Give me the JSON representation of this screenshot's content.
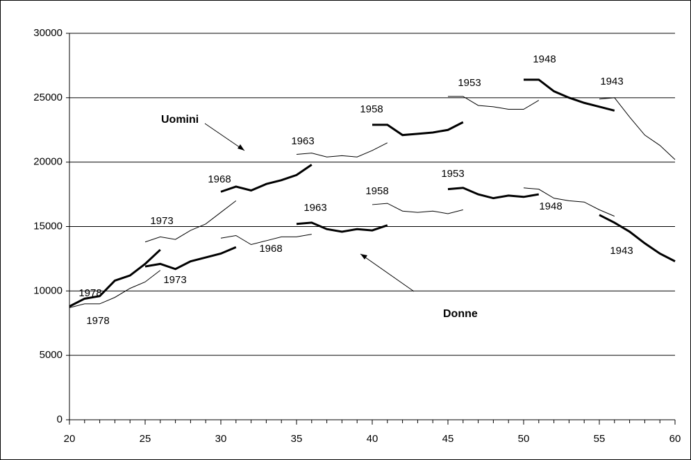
{
  "chart_data": {
    "type": "line",
    "xlim": [
      20,
      60
    ],
    "xticks": [
      20,
      25,
      30,
      35,
      40,
      45,
      50,
      55,
      60
    ],
    "ylim": [
      0,
      30000
    ],
    "yticks": [
      0,
      5000,
      10000,
      15000,
      20000,
      25000,
      30000
    ],
    "grid": true,
    "annotations": [
      "Uomini",
      "Donne"
    ],
    "series": [
      {
        "name": "1978",
        "color": "#000000",
        "line_width": 3,
        "x": [
          20,
          21,
          22,
          23,
          24,
          25,
          26
        ],
        "values": [
          8800,
          9400,
          9600,
          10800,
          11200,
          12100,
          13200
        ]
      },
      {
        "name": "1978",
        "color": "#000000",
        "line_width": 1,
        "x": [
          20,
          21,
          22,
          23,
          24,
          25,
          26
        ],
        "values": [
          8700,
          9000,
          9000,
          9500,
          10200,
          10700,
          11600
        ]
      },
      {
        "name": "1973",
        "color": "#000000",
        "line_width": 1,
        "x": [
          25,
          26,
          27,
          28,
          29,
          30,
          31
        ],
        "values": [
          13800,
          14200,
          14000,
          14700,
          15200,
          16100,
          17000
        ]
      },
      {
        "name": "1973",
        "color": "#000000",
        "line_width": 3,
        "x": [
          25,
          26,
          27,
          28,
          29,
          30,
          31
        ],
        "values": [
          11900,
          12100,
          11700,
          12300,
          12600,
          12900,
          13400
        ]
      },
      {
        "name": "1968",
        "color": "#000000",
        "line_width": 3,
        "x": [
          30,
          31,
          32,
          33,
          34,
          35,
          36
        ],
        "values": [
          17700,
          18100,
          17800,
          18300,
          18600,
          19000,
          19800
        ]
      },
      {
        "name": "1968",
        "color": "#000000",
        "line_width": 1,
        "x": [
          30,
          31,
          32,
          33,
          34,
          35,
          36
        ],
        "values": [
          14100,
          14300,
          13600,
          13900,
          14200,
          14200,
          14400
        ]
      },
      {
        "name": "1963",
        "color": "#000000",
        "line_width": 1,
        "x": [
          35,
          36,
          37,
          38,
          39,
          40,
          41
        ],
        "values": [
          20600,
          20700,
          20400,
          20500,
          20400,
          20900,
          21500
        ]
      },
      {
        "name": "1963",
        "color": "#000000",
        "line_width": 3,
        "x": [
          35,
          36,
          37,
          38,
          39,
          40,
          41
        ],
        "values": [
          15200,
          15300,
          14800,
          14600,
          14800,
          14700,
          15100
        ]
      },
      {
        "name": "1958",
        "color": "#000000",
        "line_width": 3,
        "x": [
          40,
          41,
          42,
          43,
          44,
          45,
          46
        ],
        "values": [
          22900,
          22900,
          22100,
          22200,
          22300,
          22500,
          23100
        ]
      },
      {
        "name": "1958",
        "color": "#000000",
        "line_width": 1,
        "x": [
          40,
          41,
          42,
          43,
          44,
          45,
          46
        ],
        "values": [
          16700,
          16800,
          16200,
          16100,
          16200,
          16000,
          16300
        ]
      },
      {
        "name": "1953",
        "color": "#000000",
        "line_width": 1,
        "x": [
          45,
          46,
          47,
          48,
          49,
          50,
          51
        ],
        "values": [
          25100,
          25100,
          24400,
          24300,
          24100,
          24100,
          24800
        ]
      },
      {
        "name": "1953",
        "color": "#000000",
        "line_width": 3,
        "x": [
          45,
          46,
          47,
          48,
          49,
          50,
          51
        ],
        "values": [
          17900,
          18000,
          17500,
          17200,
          17400,
          17300,
          17500
        ]
      },
      {
        "name": "1948",
        "color": "#000000",
        "line_width": 3,
        "x": [
          50,
          51,
          52,
          53,
          54,
          55,
          56
        ],
        "values": [
          26400,
          26400,
          25500,
          25000,
          24600,
          24300,
          24000
        ]
      },
      {
        "name": "1948",
        "color": "#000000",
        "line_width": 1,
        "x": [
          50,
          51,
          52,
          53,
          54,
          55,
          56
        ],
        "values": [
          18000,
          17900,
          17200,
          17000,
          16900,
          16300,
          15800
        ]
      },
      {
        "name": "1943",
        "color": "#000000",
        "line_width": 1,
        "x": [
          55,
          56,
          57,
          58,
          59,
          60
        ],
        "values": [
          24900,
          25000,
          23500,
          22100,
          21300,
          20200
        ]
      },
      {
        "name": "1943",
        "color": "#000000",
        "line_width": 3,
        "x": [
          55,
          56,
          57,
          58,
          59,
          60
        ],
        "values": [
          15900,
          15300,
          14600,
          13700,
          12900,
          12300
        ]
      }
    ]
  }
}
